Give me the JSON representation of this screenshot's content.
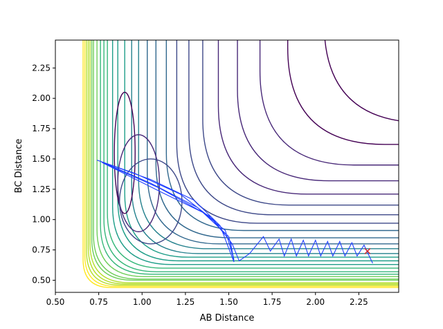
{
  "chart_data": {
    "type": "contour",
    "title": "",
    "xlabel": "AB Distance",
    "ylabel": "BC Distance",
    "xlim": [
      0.5,
      2.48
    ],
    "ylim": [
      0.4,
      2.48
    ],
    "xticks": [
      0.5,
      0.75,
      1.0,
      1.25,
      1.5,
      1.75,
      2.0,
      2.25
    ],
    "xtick_labels": [
      "0.50",
      "0.75",
      "1.00",
      "1.25",
      "1.50",
      "1.75",
      "2.00",
      "2.25"
    ],
    "yticks": [
      0.5,
      0.75,
      1.0,
      1.25,
      1.5,
      1.75,
      2.0,
      2.25
    ],
    "ytick_labels": [
      "0.50",
      "0.75",
      "1.00",
      "1.25",
      "1.50",
      "1.75",
      "2.00",
      "2.25"
    ],
    "grid": false,
    "colormap": [
      "#440154",
      "#482878",
      "#3e4989",
      "#31688e",
      "#26828e",
      "#1f9e89",
      "#35b779",
      "#6ece58",
      "#b5de2b",
      "#fde725"
    ],
    "contour_levels": [
      {
        "wall_x": 0.66,
        "floor_y": 0.44
      },
      {
        "wall_x": 0.67,
        "floor_y": 0.45
      },
      {
        "wall_x": 0.68,
        "floor_y": 0.46
      },
      {
        "wall_x": 0.69,
        "floor_y": 0.47
      },
      {
        "wall_x": 0.7,
        "floor_y": 0.48
      },
      {
        "wall_x": 0.71,
        "floor_y": 0.5
      },
      {
        "wall_x": 0.72,
        "floor_y": 0.51
      },
      {
        "wall_x": 0.74,
        "floor_y": 0.53
      },
      {
        "wall_x": 0.76,
        "floor_y": 0.55
      },
      {
        "wall_x": 0.78,
        "floor_y": 0.57
      },
      {
        "wall_x": 0.8,
        "floor_y": 0.6
      },
      {
        "wall_x": 0.83,
        "floor_y": 0.63
      },
      {
        "wall_x": 0.86,
        "floor_y": 0.66
      },
      {
        "wall_x": 0.9,
        "floor_y": 0.69
      },
      {
        "wall_x": 0.94,
        "floor_y": 0.72
      },
      {
        "wall_x": 0.98,
        "floor_y": 0.76
      },
      {
        "wall_x": 1.03,
        "floor_y": 0.8
      },
      {
        "wall_x": 1.08,
        "floor_y": 0.85
      },
      {
        "wall_x": 1.14,
        "floor_y": 0.91
      },
      {
        "wall_x": 1.2,
        "floor_y": 0.97
      },
      {
        "wall_x": 1.27,
        "floor_y": 1.04
      },
      {
        "wall_x": 1.35,
        "floor_y": 1.12
      },
      {
        "wall_x": 1.44,
        "floor_y": 1.21
      },
      {
        "wall_x": 1.55,
        "floor_y": 1.32
      },
      {
        "wall_x": 1.68,
        "floor_y": 1.45
      },
      {
        "wall_x": 1.84,
        "floor_y": 1.62
      },
      {
        "wall_x": 2.05,
        "floor_y": 1.8
      }
    ],
    "trajectory": {
      "start": [
        0.74,
        1.49
      ],
      "points": [
        [
          0.74,
          1.49
        ],
        [
          0.96,
          1.38
        ],
        [
          1.22,
          1.21
        ],
        [
          1.4,
          1.01
        ],
        [
          1.51,
          0.82
        ],
        [
          1.53,
          0.65
        ],
        [
          1.45,
          0.95
        ],
        [
          1.3,
          1.16
        ],
        [
          1.05,
          1.33
        ],
        [
          0.76,
          1.48
        ],
        [
          1.05,
          1.3
        ],
        [
          1.32,
          1.1
        ],
        [
          1.5,
          0.86
        ],
        [
          1.53,
          0.67
        ],
        [
          1.48,
          0.91
        ],
        [
          1.35,
          1.06
        ],
        [
          1.12,
          1.22
        ],
        [
          0.77,
          1.47
        ],
        [
          1.1,
          1.26
        ],
        [
          1.4,
          1.02
        ],
        [
          1.52,
          0.8
        ],
        [
          1.56,
          0.66
        ],
        [
          1.62,
          0.72
        ],
        [
          1.7,
          0.86
        ],
        [
          1.74,
          0.74
        ],
        [
          1.79,
          0.84
        ],
        [
          1.82,
          0.7
        ],
        [
          1.86,
          0.84
        ],
        [
          1.89,
          0.7
        ],
        [
          1.93,
          0.83
        ],
        [
          1.96,
          0.7
        ],
        [
          2.0,
          0.83
        ],
        [
          2.03,
          0.7
        ],
        [
          2.07,
          0.82
        ],
        [
          2.1,
          0.7
        ],
        [
          2.14,
          0.82
        ],
        [
          2.17,
          0.7
        ],
        [
          2.21,
          0.81
        ],
        [
          2.24,
          0.7
        ],
        [
          2.28,
          0.79
        ],
        [
          2.33,
          0.64
        ]
      ],
      "end_marker": [
        2.3,
        0.74
      ],
      "end_marker_color": "#d62728"
    }
  }
}
